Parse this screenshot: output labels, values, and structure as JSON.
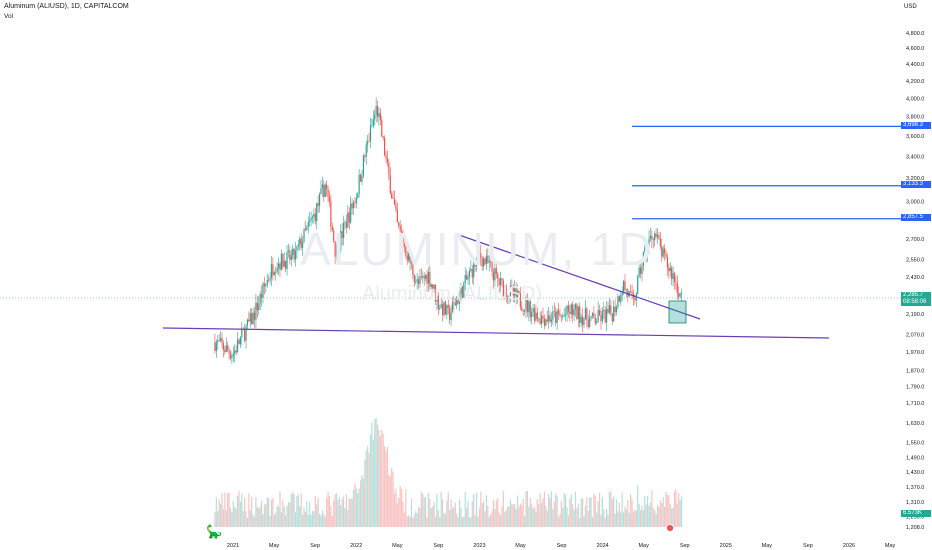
{
  "header": {
    "title": "Aluminum (ALIUSD), 1D, CAPITALCOM",
    "volume_label": "Vol",
    "currency": "USD"
  },
  "watermark": {
    "symbol": "ALUMINUM, 1D",
    "name": "Aluminum (ALIUSD)"
  },
  "price_boxes": [
    {
      "label": "3,698.3",
      "value": 3698.3,
      "color": "#2962ff"
    },
    {
      "label": "3,133.3",
      "value": 3133.3,
      "color": "#2962ff"
    },
    {
      "label": "2,857.5",
      "value": 2857.5,
      "color": "#2962ff"
    },
    {
      "label": "2,285.7",
      "sub": "08:58:06",
      "value": 2285.7,
      "color": "#22ab94"
    },
    {
      "label": "6.573K",
      "value": 1300,
      "color": "#22ab94"
    }
  ],
  "chart_data": {
    "type": "candlestick",
    "y_scale": "log",
    "y_ticks": [
      "4,800.0",
      "4,600.0",
      "4,400.0",
      "4,200.0",
      "4,000.0",
      "3,800.0",
      "3,600.0",
      "3,400.0",
      "3,200.0",
      "3,000.0",
      "2,700.0",
      "2,550.0",
      "2,430.0",
      "2,310.0",
      "2,190.0",
      "2,070.0",
      "1,970.0",
      "1,870.0",
      "1,790.0",
      "1,710.0",
      "1,630.0",
      "1,550.0",
      "1,490.0",
      "1,430.0",
      "1,370.0",
      "1,310.0",
      "1,250.0",
      "1,208.0"
    ],
    "x_ticks": [
      "2021",
      "May",
      "Sep",
      "2022",
      "May",
      "Sep",
      "2023",
      "May",
      "Sep",
      "2024",
      "May",
      "Sep",
      "2025",
      "May",
      "Sep",
      "2026",
      "May"
    ],
    "x_tick_dates": [
      "2021-01",
      "2021-05",
      "2021-09",
      "2022-01",
      "2022-05",
      "2022-09",
      "2023-01",
      "2023-05",
      "2023-09",
      "2024-01",
      "2024-05",
      "2024-09",
      "2025-01",
      "2025-05",
      "2025-09",
      "2026-01",
      "2026-05"
    ],
    "price_path": [
      [
        "2020-11",
        2035
      ],
      [
        "2021-01",
        1960
      ],
      [
        "2021-02",
        2070
      ],
      [
        "2021-03",
        2180
      ],
      [
        "2021-05",
        2520
      ],
      [
        "2021-07",
        2570
      ],
      [
        "2021-09",
        2900
      ],
      [
        "2021-10",
        3150
      ],
      [
        "2021-11",
        2600
      ],
      [
        "2022-01",
        3050
      ],
      [
        "2022-03",
        3900
      ],
      [
        "2022-04",
        3300
      ],
      [
        "2022-05",
        2800
      ],
      [
        "2022-07",
        2370
      ],
      [
        "2022-08",
        2450
      ],
      [
        "2022-09",
        2260
      ],
      [
        "2022-10",
        2180
      ],
      [
        "2022-11",
        2300
      ],
      [
        "2023-01",
        2580
      ],
      [
        "2023-02",
        2500
      ],
      [
        "2023-03",
        2380
      ],
      [
        "2023-05",
        2270
      ],
      [
        "2023-07",
        2170
      ],
      [
        "2023-09",
        2170
      ],
      [
        "2023-10",
        2210
      ],
      [
        "2023-12",
        2150
      ],
      [
        "2024-02",
        2200
      ],
      [
        "2024-03",
        2380
      ],
      [
        "2024-04",
        2250
      ],
      [
        "2024-05",
        2580
      ],
      [
        "2024-06",
        2760
      ],
      [
        "2024-07",
        2550
      ],
      [
        "2024-08",
        2420
      ],
      [
        "2024-08-22",
        2285.7
      ]
    ],
    "volume_note": "volume histogram shown below price, peak near 2022-03",
    "drawings": {
      "resistance_levels": [
        3698.3,
        3133.3,
        2857.5
      ],
      "descending_trendline": {
        "from": [
          "2022-12",
          2720
        ],
        "to": [
          "2024-10",
          2260
        ]
      },
      "support_trendline": {
        "from": [
          "2020-09",
          2105
        ],
        "to": [
          "2025-08",
          2060
        ]
      },
      "highlight_box": {
        "from": [
          "2024-08",
          2330
        ],
        "to": [
          "2024-09",
          2190
        ]
      }
    },
    "last_price": 2285.7,
    "last_volume_label": "6.573K"
  }
}
